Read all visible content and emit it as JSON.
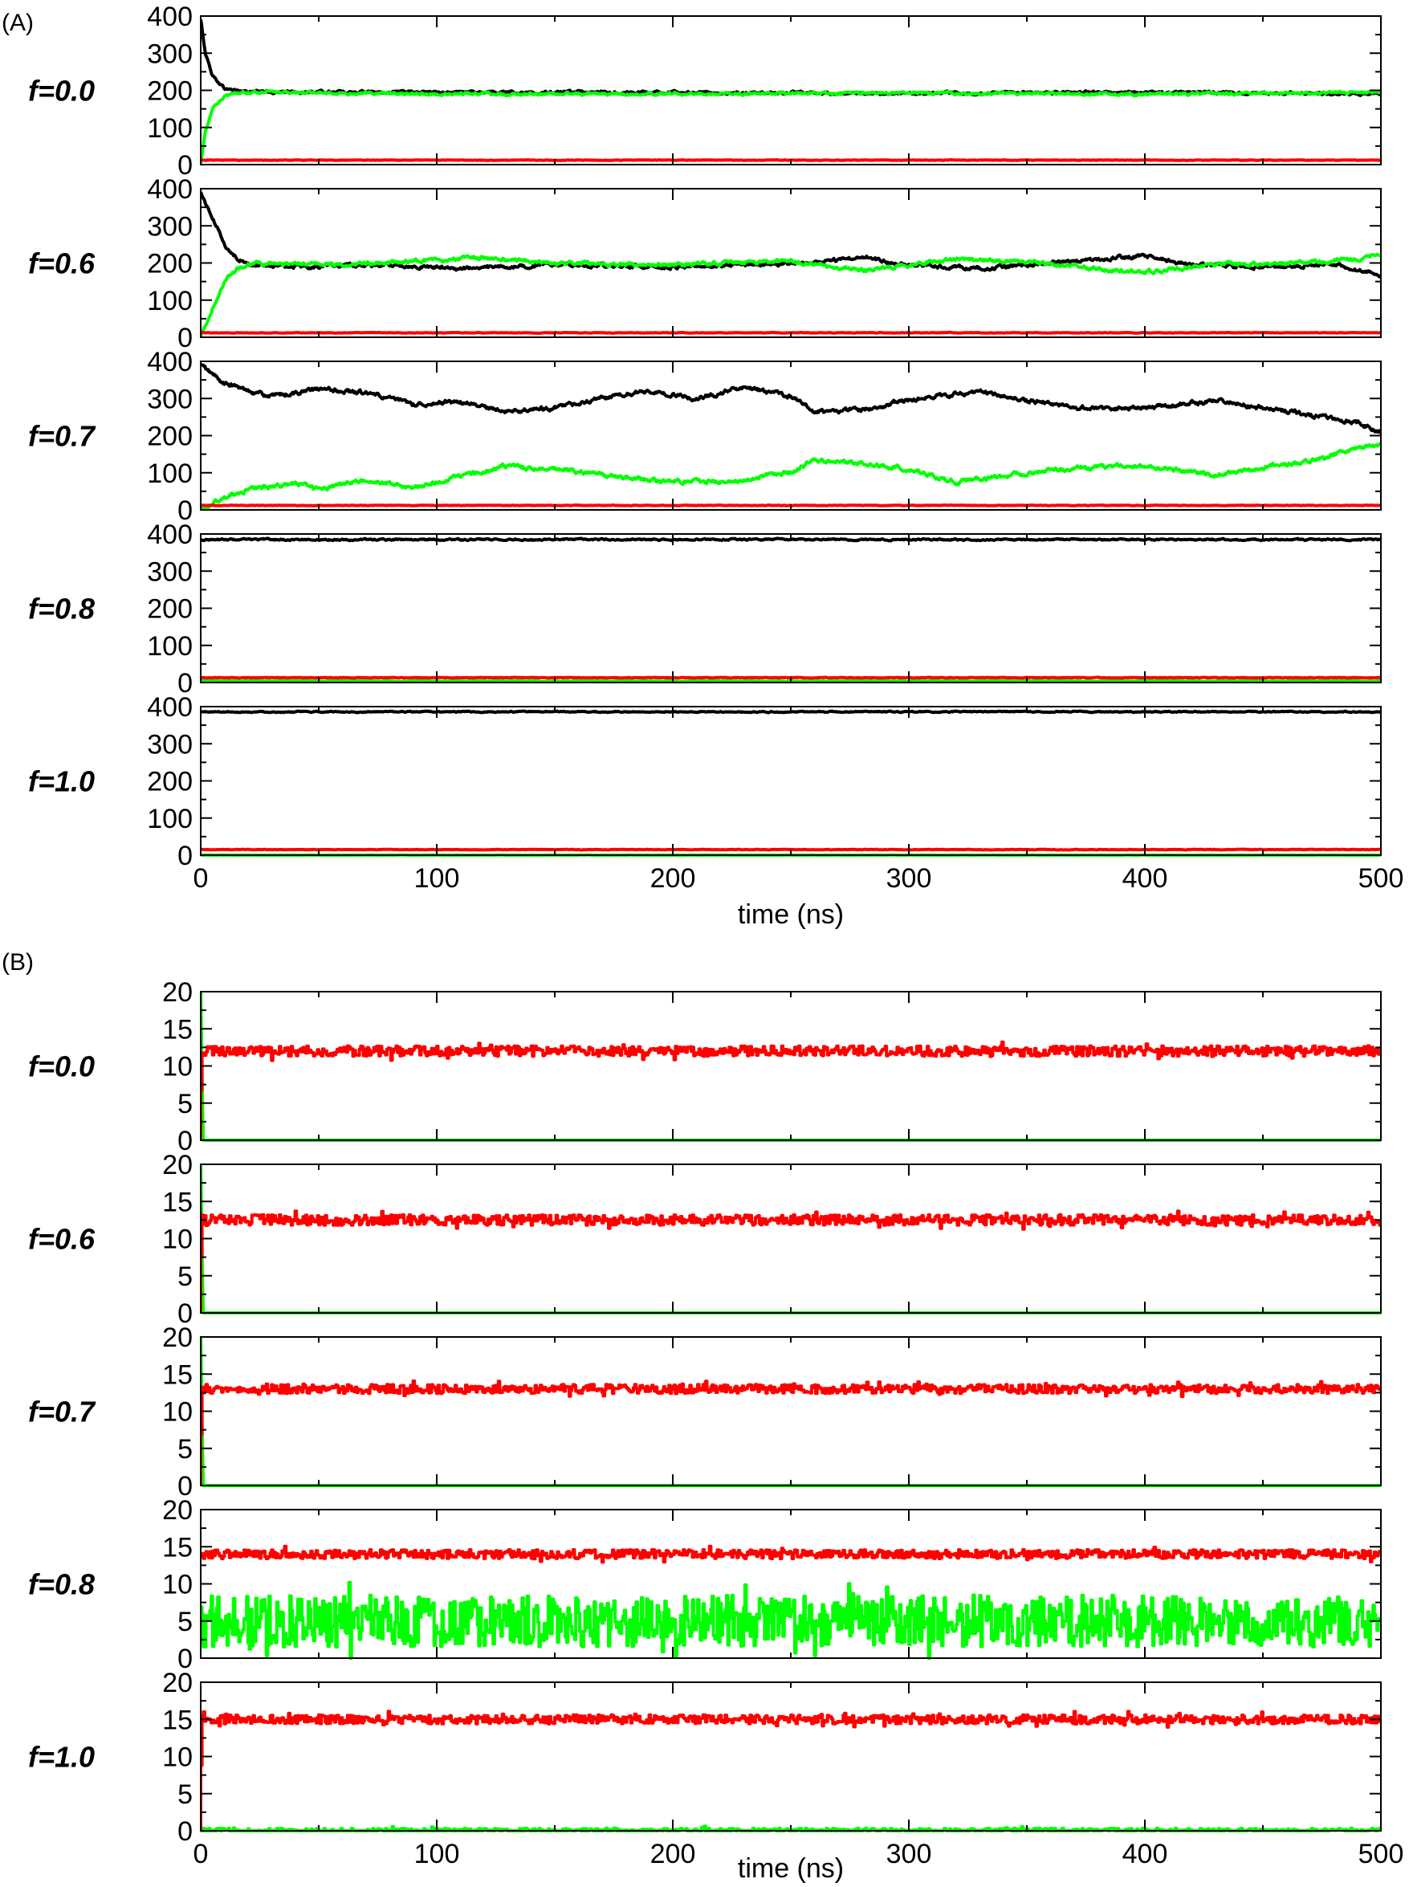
{
  "figure": {
    "panels": [
      {
        "id": "A",
        "letter": "(A)",
        "xlabel": "time (ns)",
        "xlim": [
          0,
          500
        ],
        "ylim": [
          0,
          400
        ],
        "xticks": [
          0,
          100,
          200,
          300,
          400,
          500
        ],
        "yticks": [
          0,
          100,
          200,
          300,
          400
        ],
        "colors": {
          "black": "#000000",
          "green": "#00ff00",
          "red": "#ff0000"
        }
      },
      {
        "id": "B",
        "letter": "(B)",
        "xlabel": "time (ns)",
        "xlim": [
          0,
          500
        ],
        "ylim": [
          0,
          20
        ],
        "xticks": [
          0,
          100,
          200,
          300,
          400,
          500
        ],
        "yticks": [
          0,
          5,
          10,
          15,
          20
        ],
        "colors": {
          "green": "#00ff00",
          "red": "#ff0000"
        }
      }
    ]
  },
  "chart_data": [
    {
      "type": "line",
      "panel": "A",
      "subplot": "f=0.0",
      "x_range": [
        0,
        500
      ],
      "ylim": [
        0,
        400
      ],
      "series": [
        {
          "color": "#000000",
          "noise": 5,
          "points": [
            [
              0,
              390
            ],
            [
              2,
              300
            ],
            [
              5,
              240
            ],
            [
              10,
              205
            ],
            [
              20,
              196
            ],
            [
              100,
              195
            ],
            [
              200,
              194
            ],
            [
              300,
              192
            ],
            [
              400,
              195
            ],
            [
              500,
              190
            ]
          ]
        },
        {
          "color": "#00ff00",
          "noise": 5,
          "points": [
            [
              0,
              0
            ],
            [
              2,
              90
            ],
            [
              5,
              150
            ],
            [
              10,
              185
            ],
            [
              20,
              195
            ],
            [
              100,
              190
            ],
            [
              200,
              191
            ],
            [
              300,
              193
            ],
            [
              400,
              190
            ],
            [
              500,
              195
            ]
          ]
        },
        {
          "color": "#ff0000",
          "noise": 1,
          "points": [
            [
              0,
              12
            ],
            [
              500,
              12
            ]
          ]
        }
      ]
    },
    {
      "type": "line",
      "panel": "A",
      "subplot": "f=0.6",
      "x_range": [
        0,
        500
      ],
      "ylim": [
        0,
        400
      ],
      "series": [
        {
          "color": "#000000",
          "noise": 7,
          "points": [
            [
              0,
              390
            ],
            [
              5,
              320
            ],
            [
              12,
              230
            ],
            [
              20,
              195
            ],
            [
              50,
              190
            ],
            [
              80,
              195
            ],
            [
              110,
              185
            ],
            [
              150,
              195
            ],
            [
              200,
              190
            ],
            [
              260,
              200
            ],
            [
              280,
              215
            ],
            [
              300,
              195
            ],
            [
              330,
              185
            ],
            [
              380,
              210
            ],
            [
              400,
              220
            ],
            [
              420,
              195
            ],
            [
              450,
              190
            ],
            [
              480,
              195
            ],
            [
              500,
              165
            ]
          ]
        },
        {
          "color": "#00ff00",
          "noise": 7,
          "points": [
            [
              0,
              0
            ],
            [
              5,
              80
            ],
            [
              12,
              170
            ],
            [
              20,
              200
            ],
            [
              50,
              195
            ],
            [
              80,
              200
            ],
            [
              120,
              215
            ],
            [
              150,
              200
            ],
            [
              200,
              195
            ],
            [
              250,
              205
            ],
            [
              280,
              180
            ],
            [
              320,
              210
            ],
            [
              350,
              205
            ],
            [
              380,
              185
            ],
            [
              400,
              175
            ],
            [
              430,
              195
            ],
            [
              460,
              200
            ],
            [
              490,
              210
            ],
            [
              500,
              225
            ]
          ]
        },
        {
          "color": "#ff0000",
          "noise": 1,
          "points": [
            [
              0,
              12
            ],
            [
              500,
              12
            ]
          ]
        }
      ]
    },
    {
      "type": "line",
      "panel": "A",
      "subplot": "f=0.7",
      "x_range": [
        0,
        500
      ],
      "ylim": [
        0,
        400
      ],
      "series": [
        {
          "color": "#000000",
          "noise": 8,
          "points": [
            [
              0,
              390
            ],
            [
              10,
              340
            ],
            [
              30,
              305
            ],
            [
              50,
              325
            ],
            [
              70,
              315
            ],
            [
              90,
              285
            ],
            [
              110,
              290
            ],
            [
              130,
              265
            ],
            [
              150,
              275
            ],
            [
              170,
              300
            ],
            [
              190,
              320
            ],
            [
              210,
              300
            ],
            [
              230,
              330
            ],
            [
              250,
              305
            ],
            [
              260,
              265
            ],
            [
              280,
              270
            ],
            [
              300,
              295
            ],
            [
              330,
              320
            ],
            [
              350,
              295
            ],
            [
              380,
              270
            ],
            [
              410,
              280
            ],
            [
              430,
              295
            ],
            [
              450,
              275
            ],
            [
              470,
              255
            ],
            [
              490,
              235
            ],
            [
              500,
              210
            ]
          ]
        },
        {
          "color": "#00ff00",
          "noise": 8,
          "points": [
            [
              0,
              5
            ],
            [
              10,
              35
            ],
            [
              25,
              60
            ],
            [
              40,
              70
            ],
            [
              50,
              55
            ],
            [
              70,
              80
            ],
            [
              90,
              60
            ],
            [
              110,
              90
            ],
            [
              130,
              120
            ],
            [
              150,
              110
            ],
            [
              170,
              95
            ],
            [
              190,
              80
            ],
            [
              210,
              75
            ],
            [
              230,
              80
            ],
            [
              250,
              100
            ],
            [
              260,
              135
            ],
            [
              280,
              125
            ],
            [
              300,
              110
            ],
            [
              320,
              75
            ],
            [
              340,
              90
            ],
            [
              360,
              105
            ],
            [
              390,
              120
            ],
            [
              410,
              110
            ],
            [
              430,
              95
            ],
            [
              450,
              115
            ],
            [
              470,
              130
            ],
            [
              490,
              165
            ],
            [
              500,
              175
            ]
          ]
        },
        {
          "color": "#ff0000",
          "noise": 1,
          "points": [
            [
              0,
              12
            ],
            [
              500,
              12
            ]
          ]
        }
      ]
    },
    {
      "type": "line",
      "panel": "A",
      "subplot": "f=0.8",
      "x_range": [
        0,
        500
      ],
      "ylim": [
        0,
        400
      ],
      "series": [
        {
          "color": "#000000",
          "noise": 3,
          "points": [
            [
              0,
              385
            ],
            [
              500,
              385
            ]
          ]
        },
        {
          "color": "#00ff00",
          "noise": 2,
          "points": [
            [
              0,
              4
            ],
            [
              500,
              4
            ]
          ]
        },
        {
          "color": "#ff0000",
          "noise": 1,
          "points": [
            [
              0,
              13
            ],
            [
              500,
              13
            ]
          ]
        }
      ]
    },
    {
      "type": "line",
      "panel": "A",
      "subplot": "f=1.0",
      "x_range": [
        0,
        500
      ],
      "ylim": [
        0,
        400
      ],
      "series": [
        {
          "color": "#000000",
          "noise": 2,
          "points": [
            [
              0,
              386
            ],
            [
              500,
              386
            ]
          ]
        },
        {
          "color": "#00ff00",
          "noise": 0.5,
          "points": [
            [
              0,
              0
            ],
            [
              500,
              0
            ]
          ]
        },
        {
          "color": "#ff0000",
          "noise": 1,
          "points": [
            [
              0,
              15
            ],
            [
              500,
              15
            ]
          ]
        }
      ]
    },
    {
      "type": "line",
      "panel": "B",
      "subplot": "f=0.0",
      "x_range": [
        0,
        500
      ],
      "ylim": [
        0,
        20
      ],
      "series": [
        {
          "color": "#00ff00",
          "noise": 0,
          "points": [
            [
              0,
              20
            ],
            [
              1,
              0
            ],
            [
              500,
              0
            ]
          ]
        },
        {
          "color": "#ff0000",
          "noise": 0.7,
          "step": true,
          "points": [
            [
              0,
              0
            ],
            [
              1,
              12
            ],
            [
              500,
              12
            ]
          ]
        }
      ]
    },
    {
      "type": "line",
      "panel": "B",
      "subplot": "f=0.6",
      "x_range": [
        0,
        500
      ],
      "ylim": [
        0,
        20
      ],
      "series": [
        {
          "color": "#00ff00",
          "noise": 0,
          "points": [
            [
              0,
              20
            ],
            [
              1,
              0
            ],
            [
              500,
              0
            ]
          ]
        },
        {
          "color": "#ff0000",
          "noise": 0.7,
          "step": true,
          "points": [
            [
              0,
              0
            ],
            [
              1,
              12.5
            ],
            [
              500,
              12.5
            ]
          ]
        }
      ]
    },
    {
      "type": "line",
      "panel": "B",
      "subplot": "f=0.7",
      "x_range": [
        0,
        500
      ],
      "ylim": [
        0,
        20
      ],
      "series": [
        {
          "color": "#00ff00",
          "noise": 0,
          "points": [
            [
              0,
              20
            ],
            [
              1,
              0
            ],
            [
              500,
              0
            ]
          ]
        },
        {
          "color": "#ff0000",
          "noise": 0.6,
          "step": true,
          "points": [
            [
              0,
              0
            ],
            [
              1,
              13
            ],
            [
              500,
              13
            ]
          ]
        }
      ]
    },
    {
      "type": "line",
      "panel": "B",
      "subplot": "f=0.8",
      "x_range": [
        0,
        500
      ],
      "ylim": [
        0,
        20
      ],
      "series": [
        {
          "color": "#00ff00",
          "noise": 3.5,
          "step": true,
          "points": [
            [
              0,
              5
            ],
            [
              500,
              5
            ]
          ]
        },
        {
          "color": "#ff0000",
          "noise": 0.6,
          "step": true,
          "points": [
            [
              0,
              14
            ],
            [
              500,
              14
            ]
          ]
        }
      ]
    },
    {
      "type": "line",
      "panel": "B",
      "subplot": "f=1.0",
      "x_range": [
        0,
        500
      ],
      "ylim": [
        0,
        20
      ],
      "series": [
        {
          "color": "#00ff00",
          "noise": 0.35,
          "step": true,
          "points": [
            [
              0,
              0
            ],
            [
              500,
              0
            ]
          ]
        },
        {
          "color": "#ff0000",
          "noise": 0.6,
          "step": true,
          "points": [
            [
              0,
              0
            ],
            [
              1,
              15
            ],
            [
              500,
              15
            ]
          ]
        }
      ]
    }
  ]
}
